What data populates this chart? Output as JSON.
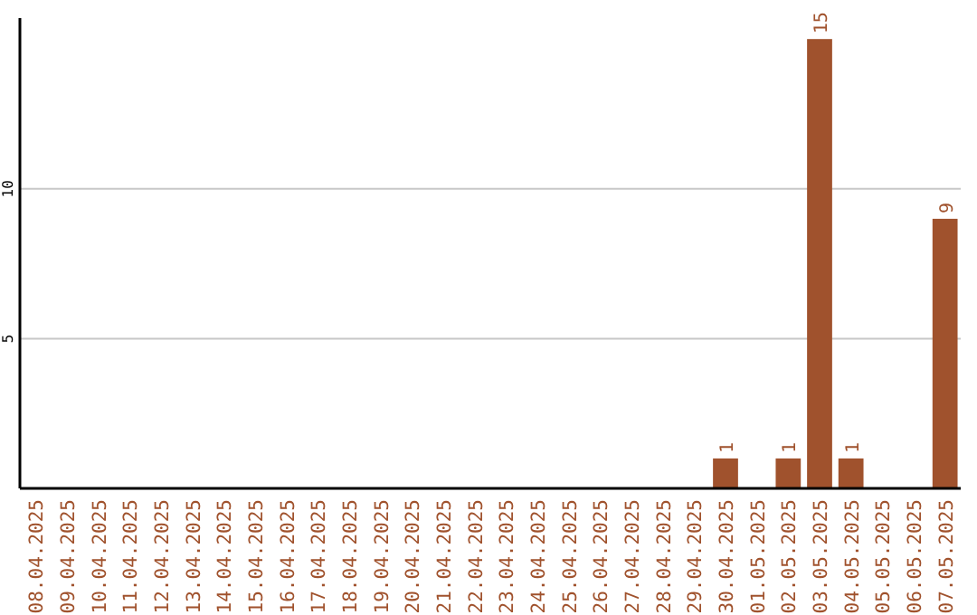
{
  "chart_data": {
    "type": "bar",
    "categories": [
      "08.04.2025",
      "09.04.2025",
      "10.04.2025",
      "11.04.2025",
      "12.04.2025",
      "13.04.2025",
      "14.04.2025",
      "15.04.2025",
      "16.04.2025",
      "17.04.2025",
      "18.04.2025",
      "19.04.2025",
      "20.04.2025",
      "21.04.2025",
      "22.04.2025",
      "23.04.2025",
      "24.04.2025",
      "25.04.2025",
      "26.04.2025",
      "27.04.2025",
      "28.04.2025",
      "29.04.2025",
      "30.04.2025",
      "01.05.2025",
      "02.05.2025",
      "03.05.2025",
      "04.05.2025",
      "05.05.2025",
      "06.05.2025",
      "07.05.2025"
    ],
    "values": [
      0,
      0,
      0,
      0,
      0,
      0,
      0,
      0,
      0,
      0,
      0,
      0,
      0,
      0,
      0,
      0,
      0,
      0,
      0,
      0,
      0,
      0,
      1,
      0,
      1,
      15,
      1,
      0,
      0,
      9
    ],
    "value_labels": [
      null,
      null,
      null,
      null,
      null,
      null,
      null,
      null,
      null,
      null,
      null,
      null,
      null,
      null,
      null,
      null,
      null,
      null,
      null,
      null,
      null,
      null,
      "1",
      null,
      "1",
      "15",
      "1",
      null,
      null,
      "9"
    ],
    "color": "#a0522d",
    "ylim": [
      0,
      15.7
    ],
    "yticks": [
      5,
      10
    ],
    "grid": "y"
  }
}
